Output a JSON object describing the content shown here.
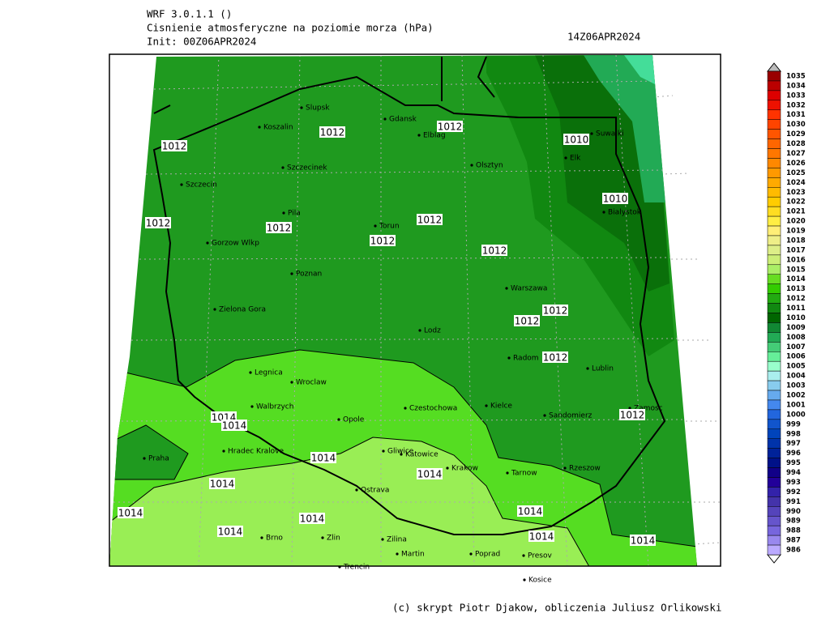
{
  "header": {
    "model": "WRF 3.0.1.1 ()",
    "title": "Cisnienie atmosferyczne na poziomie morza (hPa)",
    "init": "Init: 00Z06APR2024",
    "valid": "14Z06APR2024"
  },
  "map": {
    "cities": [
      "Slupsk",
      "Koszalin",
      "Gdansk",
      "Elblag",
      "Olsztyn",
      "Suwalki",
      "Elk",
      "Szczecinek",
      "Szczecin",
      "Bialystok",
      "Pila",
      "Torun",
      "Gorzow Wlkp",
      "Poznan",
      "Warszawa",
      "Zielona Gora",
      "Lodz",
      "Radom",
      "Lublin",
      "Legnica",
      "Wroclaw",
      "Walbrzych",
      "Czestochowa",
      "Kielce",
      "Zamosc",
      "Opole",
      "Sandomierz",
      "Hradec Kralove",
      "Praha",
      "Gliwice",
      "Katowice",
      "Krakow",
      "Tarnow",
      "Rzeszow",
      "Ostrava",
      "Brno",
      "Zlin",
      "Zilina",
      "Martin",
      "Poprad",
      "Presov",
      "Trencin",
      "Kosice"
    ],
    "isobar_labels": [
      "1012",
      "1012",
      "1012",
      "1012",
      "1012",
      "1012",
      "1012",
      "1012",
      "1012",
      "1012",
      "1012",
      "1012",
      "1010",
      "1010",
      "1014",
      "1014",
      "1014",
      "1014",
      "1014",
      "1014",
      "1014",
      "1014",
      "1014",
      "1014",
      "1014"
    ]
  },
  "colorbar": {
    "levels": [
      1035,
      1034,
      1033,
      1032,
      1031,
      1030,
      1029,
      1028,
      1027,
      1026,
      1025,
      1024,
      1023,
      1022,
      1021,
      1020,
      1019,
      1018,
      1017,
      1016,
      1015,
      1014,
      1013,
      1012,
      1011,
      1010,
      1009,
      1008,
      1007,
      1006,
      1005,
      1004,
      1003,
      1002,
      1001,
      1000,
      999,
      998,
      997,
      996,
      995,
      994,
      993,
      992,
      991,
      990,
      989,
      988,
      987,
      986
    ],
    "colors": [
      "#990000",
      "#bb0000",
      "#dd0000",
      "#ee1100",
      "#ff3300",
      "#ff4400",
      "#ff5500",
      "#ff6600",
      "#ff7700",
      "#ff8800",
      "#ff9900",
      "#ffaa00",
      "#ffbb00",
      "#ffcc00",
      "#ffdd22",
      "#ffee44",
      "#ffee77",
      "#eeee88",
      "#ddee88",
      "#ccee77",
      "#aaee66",
      "#66dd22",
      "#33cc00",
      "#22aa11",
      "#118811",
      "#006600",
      "#118833",
      "#22aa55",
      "#44cc77",
      "#66ee99",
      "#99ffcc",
      "#aaeeee",
      "#88ccee",
      "#66aaee",
      "#4488ee",
      "#2266dd",
      "#1155cc",
      "#0044bb",
      "#0033aa",
      "#002299",
      "#001188",
      "#110088",
      "#220099",
      "#3322aa",
      "#4433aa",
      "#5544bb",
      "#6655cc",
      "#7766dd",
      "#9988ee",
      "#bbaaff"
    ]
  },
  "footer": "(c) skrypt Piotr Djakow, obliczenia Juliusz Orlikowski"
}
